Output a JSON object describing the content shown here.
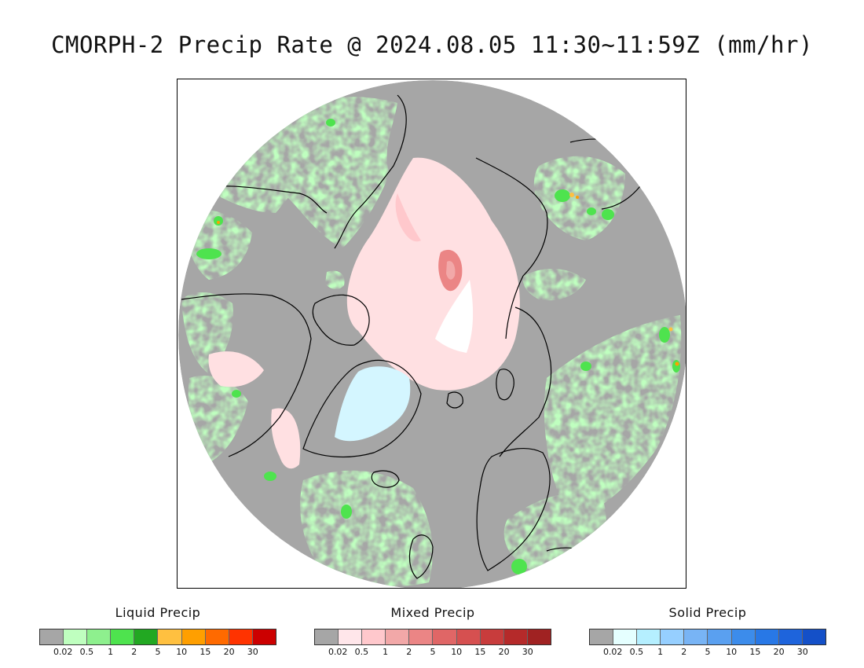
{
  "title": "CMORPH-2 Precip Rate @ 2024.08.05 11:30~11:59Z (mm/hr)",
  "map": {
    "projection": "north-polar-stereographic",
    "background_color": "#a6a6a6",
    "coastline_color": "#000000"
  },
  "legends": [
    {
      "id": "liquid",
      "title": "Liquid Precip",
      "ticks": [
        "0.02",
        "0.5",
        "1",
        "2",
        "5",
        "10",
        "15",
        "20",
        "30"
      ],
      "colors": [
        "#a6a6a6",
        "#bfffbf",
        "#8ef08e",
        "#4ee34e",
        "#22a822",
        "#ffc040",
        "#ff9f00",
        "#ff6a00",
        "#ff3300",
        "#cc0000"
      ]
    },
    {
      "id": "mixed",
      "title": "Mixed Precip",
      "ticks": [
        "0.02",
        "0.5",
        "1",
        "2",
        "5",
        "10",
        "15",
        "20",
        "30"
      ],
      "colors": [
        "#a6a6a6",
        "#ffe6ea",
        "#ffc8cc",
        "#f2a8a8",
        "#eb8585",
        "#e06666",
        "#d65050",
        "#c83c3c",
        "#b52a2a",
        "#a02222"
      ]
    },
    {
      "id": "solid",
      "title": "Solid Precip",
      "ticks": [
        "0.02",
        "0.5",
        "1",
        "2",
        "5",
        "10",
        "15",
        "20",
        "30"
      ],
      "colors": [
        "#a6a6a6",
        "#e5ffff",
        "#b5efff",
        "#96cfff",
        "#78b4f5",
        "#5aa0f0",
        "#3c8ceb",
        "#2878e6",
        "#1e64dc",
        "#1450c8"
      ]
    }
  ]
}
